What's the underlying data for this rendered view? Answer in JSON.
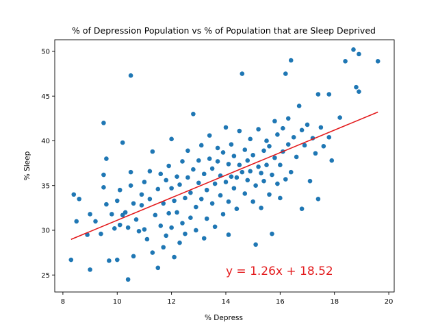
{
  "chart_data": {
    "type": "scatter",
    "title": "% of Depression Population vs % of Population that are Sleep Deprived",
    "xlabel": "% Depress",
    "ylabel": "% Sleep",
    "xlim": [
      7.7,
      20.2
    ],
    "ylim": [
      23.1,
      51.3
    ],
    "xticks": [
      8,
      10,
      12,
      14,
      16,
      18,
      20
    ],
    "yticks": [
      25,
      30,
      35,
      40,
      45,
      50
    ],
    "grid": false,
    "colors": {
      "points": "#1f77b4",
      "regression": "#e31a1c",
      "equation": "#e31a1c"
    },
    "series": [
      {
        "marker": "circle",
        "points": [
          [
            8.3,
            26.7
          ],
          [
            8.4,
            34.0
          ],
          [
            8.5,
            31.0
          ],
          [
            8.6,
            33.5
          ],
          [
            8.9,
            29.5
          ],
          [
            9.0,
            25.6
          ],
          [
            9.0,
            31.8
          ],
          [
            9.2,
            31.0
          ],
          [
            9.4,
            29.6
          ],
          [
            9.5,
            34.8
          ],
          [
            9.5,
            36.2
          ],
          [
            9.5,
            42.0
          ],
          [
            9.6,
            32.9
          ],
          [
            9.6,
            38.0
          ],
          [
            9.7,
            26.6
          ],
          [
            9.8,
            31.8
          ],
          [
            9.9,
            30.2
          ],
          [
            10.0,
            26.7
          ],
          [
            10.0,
            33.3
          ],
          [
            10.1,
            30.6
          ],
          [
            10.1,
            34.5
          ],
          [
            10.2,
            39.8
          ],
          [
            10.2,
            31.7
          ],
          [
            10.3,
            32.0
          ],
          [
            10.4,
            30.3
          ],
          [
            10.4,
            24.5
          ],
          [
            10.5,
            35.0
          ],
          [
            10.5,
            36.5
          ],
          [
            10.5,
            47.3
          ],
          [
            10.6,
            33.0
          ],
          [
            10.6,
            27.1
          ],
          [
            10.7,
            31.2
          ],
          [
            10.8,
            29.9
          ],
          [
            10.9,
            34.0
          ],
          [
            10.9,
            32.8
          ],
          [
            11.0,
            30.1
          ],
          [
            11.0,
            35.4
          ],
          [
            11.1,
            29.0
          ],
          [
            11.2,
            33.5
          ],
          [
            11.2,
            36.6
          ],
          [
            11.3,
            27.5
          ],
          [
            11.3,
            38.8
          ],
          [
            11.4,
            31.7
          ],
          [
            11.5,
            34.6
          ],
          [
            11.5,
            25.8
          ],
          [
            11.6,
            30.5
          ],
          [
            11.6,
            36.3
          ],
          [
            11.7,
            28.1
          ],
          [
            11.7,
            33.0
          ],
          [
            11.8,
            35.6
          ],
          [
            11.8,
            29.4
          ],
          [
            11.9,
            31.9
          ],
          [
            11.9,
            37.2
          ],
          [
            12.0,
            30.3
          ],
          [
            12.0,
            34.7
          ],
          [
            12.0,
            40.2
          ],
          [
            12.1,
            27.0
          ],
          [
            12.1,
            33.3
          ],
          [
            12.2,
            32.0
          ],
          [
            12.2,
            36.0
          ],
          [
            12.3,
            28.6
          ],
          [
            12.3,
            35.1
          ],
          [
            12.4,
            30.8
          ],
          [
            12.4,
            37.7
          ],
          [
            12.5,
            33.6
          ],
          [
            12.5,
            29.6
          ],
          [
            12.6,
            35.9
          ],
          [
            12.6,
            38.9
          ],
          [
            12.7,
            31.4
          ],
          [
            12.7,
            34.2
          ],
          [
            12.8,
            36.8
          ],
          [
            12.8,
            43.0
          ],
          [
            12.9,
            32.6
          ],
          [
            12.9,
            30.0
          ],
          [
            13.0,
            35.3
          ],
          [
            13.0,
            37.8
          ],
          [
            13.1,
            33.5
          ],
          [
            13.1,
            39.5
          ],
          [
            13.2,
            29.1
          ],
          [
            13.2,
            36.3
          ],
          [
            13.3,
            34.5
          ],
          [
            13.3,
            31.3
          ],
          [
            13.4,
            38.0
          ],
          [
            13.4,
            40.6
          ],
          [
            13.5,
            33.0
          ],
          [
            13.5,
            36.9
          ],
          [
            13.6,
            35.2
          ],
          [
            13.6,
            30.4
          ],
          [
            13.7,
            37.7
          ],
          [
            13.7,
            39.2
          ],
          [
            13.8,
            33.9
          ],
          [
            13.8,
            36.1
          ],
          [
            13.9,
            31.8
          ],
          [
            13.9,
            38.7
          ],
          [
            14.0,
            35.4
          ],
          [
            14.0,
            41.5
          ],
          [
            14.1,
            33.2
          ],
          [
            14.1,
            37.4
          ],
          [
            14.1,
            29.5
          ],
          [
            14.2,
            36.0
          ],
          [
            14.2,
            39.6
          ],
          [
            14.3,
            34.7
          ],
          [
            14.3,
            38.3
          ],
          [
            14.4,
            35.9
          ],
          [
            14.4,
            32.4
          ],
          [
            14.5,
            37.3
          ],
          [
            14.5,
            41.1
          ],
          [
            14.6,
            36.5
          ],
          [
            14.6,
            47.5
          ],
          [
            14.7,
            39.0
          ],
          [
            14.7,
            34.1
          ],
          [
            14.8,
            37.8
          ],
          [
            14.8,
            35.6
          ],
          [
            14.9,
            40.2
          ],
          [
            14.9,
            36.6
          ],
          [
            15.0,
            33.2
          ],
          [
            15.0,
            38.4
          ],
          [
            15.1,
            28.4
          ],
          [
            15.1,
            35.0
          ],
          [
            15.2,
            37.1
          ],
          [
            15.2,
            41.3
          ],
          [
            15.3,
            36.4
          ],
          [
            15.3,
            32.5
          ],
          [
            15.4,
            38.9
          ],
          [
            15.4,
            35.5
          ],
          [
            15.5,
            40.0
          ],
          [
            15.5,
            37.3
          ],
          [
            15.6,
            34.0
          ],
          [
            15.6,
            39.4
          ],
          [
            15.7,
            29.6
          ],
          [
            15.7,
            36.2
          ],
          [
            15.8,
            38.1
          ],
          [
            15.8,
            42.2
          ],
          [
            15.9,
            35.2
          ],
          [
            15.9,
            40.7
          ],
          [
            16.0,
            37.3
          ],
          [
            16.0,
            33.6
          ],
          [
            16.1,
            41.4
          ],
          [
            16.1,
            38.8
          ],
          [
            16.2,
            47.5
          ],
          [
            16.2,
            35.7
          ],
          [
            16.3,
            39.6
          ],
          [
            16.3,
            42.5
          ],
          [
            16.4,
            49.0
          ],
          [
            16.4,
            36.5
          ],
          [
            16.5,
            40.4
          ],
          [
            16.6,
            38.2
          ],
          [
            16.7,
            43.9
          ],
          [
            16.8,
            41.2
          ],
          [
            16.8,
            32.4
          ],
          [
            16.9,
            39.5
          ],
          [
            17.0,
            41.8
          ],
          [
            17.1,
            35.5
          ],
          [
            17.2,
            40.3
          ],
          [
            17.3,
            38.6
          ],
          [
            17.4,
            45.2
          ],
          [
            17.4,
            33.5
          ],
          [
            17.5,
            41.5
          ],
          [
            17.6,
            39.4
          ],
          [
            17.8,
            45.2
          ],
          [
            17.8,
            40.4
          ],
          [
            17.9,
            37.8
          ],
          [
            18.2,
            42.6
          ],
          [
            18.4,
            48.9
          ],
          [
            18.7,
            50.2
          ],
          [
            18.8,
            46.0
          ],
          [
            18.9,
            45.5
          ],
          [
            18.9,
            49.7
          ],
          [
            19.6,
            48.9
          ]
        ]
      }
    ],
    "regression": {
      "slope": 1.26,
      "intercept": 18.52,
      "x_range": [
        8.3,
        19.6
      ],
      "equation_label": "y = 1.26x + 18.52",
      "equation_anchor": [
        14.0,
        25.0
      ]
    }
  }
}
